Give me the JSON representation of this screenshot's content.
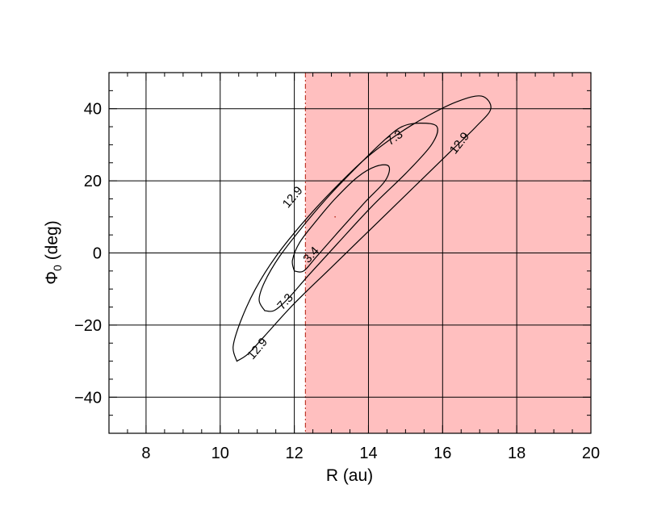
{
  "chart_data": {
    "type": "contour",
    "xlabel": "R (au)",
    "ylabel_main": "Φ",
    "ylabel_sub": "0",
    "ylabel_rest": " (deg)",
    "xlim": [
      7,
      20
    ],
    "ylim": [
      -50,
      50
    ],
    "xticks": [
      8,
      10,
      12,
      14,
      16,
      18,
      20
    ],
    "yticks": [
      -40,
      -20,
      0,
      20,
      40
    ],
    "x_minor_step": 0.5,
    "y_minor_step": 5,
    "grid": true,
    "shaded_region": {
      "x_from": 12.3,
      "x_to": 20,
      "color": "#ffbfbf",
      "boundary_color": "#c0392b"
    },
    "minimum_marker": {
      "x": 13.1,
      "y": 10,
      "color": "#c0392b"
    },
    "contours": [
      {
        "level": "3.4",
        "points": [
          [
            12.0,
            -5
          ],
          [
            11.95,
            -2
          ],
          [
            12.15,
            3
          ],
          [
            12.6,
            9
          ],
          [
            13.1,
            15
          ],
          [
            13.7,
            21
          ],
          [
            14.2,
            24
          ],
          [
            14.55,
            24
          ],
          [
            14.45,
            20
          ],
          [
            13.9,
            14
          ],
          [
            13.2,
            6
          ],
          [
            12.6,
            -1
          ],
          [
            12.25,
            -5
          ],
          [
            12.0,
            -5
          ]
        ],
        "labels": [
          {
            "x": 12.45,
            "y": -0.5,
            "angle": 48,
            "text": "3.4"
          }
        ]
      },
      {
        "level": "7.3",
        "points": [
          [
            11.2,
            -16
          ],
          [
            11.05,
            -13
          ],
          [
            11.2,
            -8
          ],
          [
            11.6,
            -1
          ],
          [
            12.2,
            7
          ],
          [
            12.95,
            16
          ],
          [
            13.7,
            24
          ],
          [
            14.4,
            31
          ],
          [
            14.9,
            35
          ],
          [
            15.4,
            36
          ],
          [
            15.85,
            35
          ],
          [
            15.7,
            30
          ],
          [
            15.0,
            22
          ],
          [
            14.1,
            13
          ],
          [
            13.2,
            3
          ],
          [
            12.4,
            -6
          ],
          [
            11.8,
            -13
          ],
          [
            11.45,
            -16
          ],
          [
            11.2,
            -16
          ]
        ],
        "labels": [
          {
            "x": 11.75,
            "y": -13.5,
            "angle": 48,
            "text": "7.3"
          },
          {
            "x": 14.7,
            "y": 32,
            "angle": 35,
            "text": "7.3"
          }
        ]
      },
      {
        "level": "12.9",
        "points": [
          [
            10.45,
            -30
          ],
          [
            10.35,
            -26
          ],
          [
            10.55,
            -19
          ],
          [
            10.95,
            -10
          ],
          [
            11.5,
            -1
          ],
          [
            12.2,
            8
          ],
          [
            13.0,
            17
          ],
          [
            13.9,
            26
          ],
          [
            14.8,
            33
          ],
          [
            15.6,
            38
          ],
          [
            16.4,
            42
          ],
          [
            17.05,
            43.5
          ],
          [
            17.3,
            40
          ],
          [
            16.9,
            35
          ],
          [
            16.2,
            28
          ],
          [
            15.2,
            18
          ],
          [
            14.1,
            7
          ],
          [
            13.0,
            -4
          ],
          [
            12.0,
            -14
          ],
          [
            11.2,
            -23
          ],
          [
            10.75,
            -28
          ],
          [
            10.45,
            -30
          ]
        ],
        "labels": [
          {
            "x": 11.0,
            "y": -26.5,
            "angle": 50,
            "text": "12.9"
          },
          {
            "x": 11.95,
            "y": 15.5,
            "angle": 50,
            "text": "12.9"
          },
          {
            "x": 16.45,
            "y": 30.5,
            "angle": 52,
            "text": "12.9"
          }
        ]
      }
    ]
  }
}
